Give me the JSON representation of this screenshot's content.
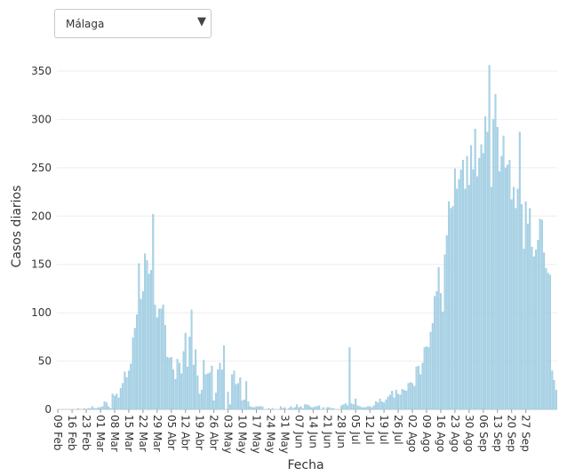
{
  "dropdown": {
    "selected": "Málaga"
  },
  "chart_data": {
    "type": "bar",
    "xlabel": "Fecha",
    "ylabel": "Casos diarios",
    "ylim": [
      0,
      370
    ],
    "yticks": [
      0,
      50,
      100,
      150,
      200,
      250,
      300,
      350
    ],
    "grid": true,
    "bar_color": "#a9d3e6",
    "bar_edge_color": "#8fc2da",
    "tick_labels": [
      "09 Feb",
      "16 Feb",
      "23 Feb",
      "01 Mar",
      "08 Mar",
      "15 Mar",
      "22 Mar",
      "29 Mar",
      "05 Abr",
      "12 Abr",
      "19 Abr",
      "26 Abr",
      "03 May",
      "10 May",
      "17 May",
      "24 May",
      "31 May",
      "07 Jun",
      "14 Jun",
      "21 Jun",
      "28 Jun",
      "05 Jul",
      "12 Jul",
      "19 Jul",
      "26 Jul",
      "02 Ago",
      "09 Ago",
      "16 Ago",
      "23 Ago",
      "30 Ago",
      "06 Sep",
      "13 Sep",
      "20 Sep",
      "27 Sep"
    ],
    "series": [
      {
        "values": [
          0,
          0,
          0,
          0,
          0,
          0,
          0,
          0,
          0,
          0,
          1,
          0,
          0,
          1,
          0,
          1,
          1,
          3,
          1,
          1,
          2,
          2,
          3,
          8,
          7,
          3,
          1,
          16,
          14,
          16,
          12,
          22,
          27,
          39,
          33,
          40,
          47,
          74,
          84,
          98,
          151,
          114,
          122,
          161,
          154,
          140,
          144,
          202,
          108,
          95,
          104,
          104,
          108,
          87,
          54,
          53,
          54,
          41,
          31,
          52,
          48,
          37,
          60,
          79,
          44,
          75,
          103,
          46,
          62,
          35,
          16,
          20,
          51,
          36,
          37,
          38,
          45,
          9,
          17,
          41,
          48,
          41,
          66,
          0,
          18,
          5,
          36,
          40,
          26,
          27,
          33,
          9,
          10,
          29,
          8,
          3,
          2,
          2,
          3,
          3,
          3,
          3,
          0,
          0,
          1,
          0,
          1,
          0,
          0,
          0,
          3,
          1,
          2,
          0,
          1,
          3,
          1,
          2,
          5,
          2,
          3,
          1,
          5,
          5,
          4,
          2,
          2,
          3,
          3,
          4,
          0,
          2,
          0,
          2,
          2,
          1,
          1,
          0,
          0,
          0,
          4,
          5,
          6,
          4,
          64,
          6,
          5,
          11,
          4,
          3,
          2,
          2,
          2,
          3,
          3,
          2,
          4,
          8,
          7,
          11,
          8,
          7,
          10,
          13,
          15,
          19,
          12,
          20,
          16,
          15,
          21,
          20,
          19,
          27,
          28,
          27,
          24,
          44,
          45,
          36,
          48,
          64,
          65,
          64,
          80,
          89,
          117,
          122,
          147,
          120,
          101,
          160,
          180,
          215,
          208,
          210,
          249,
          228,
          238,
          248,
          258,
          228,
          262,
          232,
          273,
          248,
          290,
          241,
          260,
          274,
          265,
          303,
          287,
          356,
          230,
          300,
          326,
          292,
          246,
          262,
          283,
          250,
          253,
          258,
          217,
          230,
          208,
          228,
          287,
          212,
          166,
          215,
          192,
          208,
          168,
          158,
          165,
          175,
          197,
          196,
          162,
          146,
          141,
          139,
          40,
          30,
          20
        ]
      }
    ]
  }
}
